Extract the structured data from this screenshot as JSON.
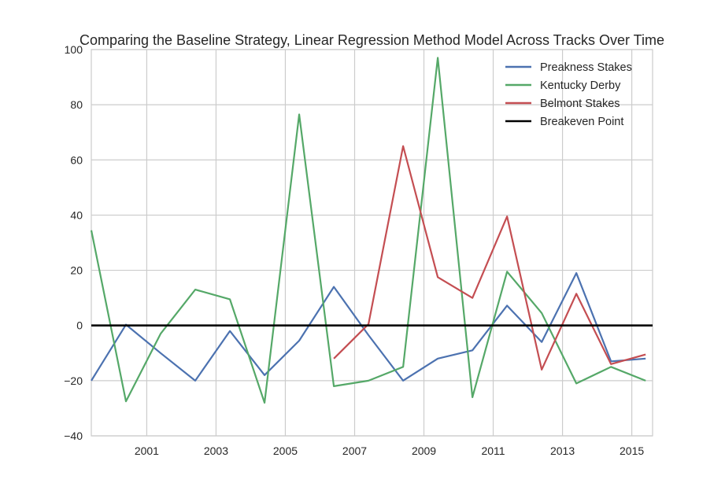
{
  "chart_data": {
    "type": "line",
    "title": "Comparing the Baseline Strategy, Linear Regression Method Model Across Tracks Over Time",
    "xlabel": "",
    "ylabel": "",
    "xlim": [
      1999.4,
      2015.6
    ],
    "ylim": [
      -40,
      100
    ],
    "x_ticks": [
      2001,
      2003,
      2005,
      2007,
      2009,
      2011,
      2013,
      2015
    ],
    "x_tick_labels": [
      "2001",
      "2003",
      "2005",
      "2007",
      "2009",
      "2011",
      "2013",
      "2015"
    ],
    "y_ticks": [
      -40,
      -20,
      0,
      20,
      40,
      60,
      80,
      100
    ],
    "y_tick_labels": [
      "−40",
      "−20",
      "0",
      "20",
      "40",
      "60",
      "80",
      "100"
    ],
    "grid": true,
    "legend_position": "top-right",
    "series": [
      {
        "name": "Preakness Stakes",
        "color": "#4c72b0",
        "x": [
          1999.4,
          2000.4,
          2001.4,
          2002.4,
          2003.4,
          2004.4,
          2005.4,
          2006.4,
          2007.4,
          2008.4,
          2009.4,
          2010.4,
          2011.4,
          2012.4,
          2013.4,
          2014.4,
          2015.4
        ],
        "y": [
          -20,
          0.3,
          -10,
          -20,
          -2,
          -18,
          -5.5,
          14,
          -3.5,
          -20,
          -12,
          -9,
          7.2,
          -6,
          19,
          -13,
          -12
        ]
      },
      {
        "name": "Kentucky Derby",
        "color": "#55a868",
        "x": [
          1999.4,
          2000.4,
          2001.4,
          2002.4,
          2003.4,
          2004.4,
          2005.4,
          2006.4,
          2007.4,
          2008.4,
          2009.4,
          2010.4,
          2011.4,
          2012.4,
          2013.4,
          2014.4,
          2015.4
        ],
        "y": [
          34.5,
          -27.5,
          -3,
          13,
          9.5,
          -28,
          76.5,
          -22,
          -20,
          -15,
          97,
          -26,
          19.5,
          4.5,
          -21,
          -15,
          -20
        ]
      },
      {
        "name": "Belmont Stakes",
        "color": "#c44e52",
        "x": [
          2006.4,
          2007.4,
          2008.4,
          2009.4,
          2010.4,
          2011.4,
          2012.4,
          2013.4,
          2014.4,
          2015.4
        ],
        "y": [
          -12,
          0.5,
          65,
          17.5,
          10,
          39.5,
          -16,
          11.5,
          -14,
          -10.5
        ]
      },
      {
        "name": "Breakeven Point",
        "color": "#000000",
        "x": [
          1999.4,
          2015.6
        ],
        "y": [
          0,
          0
        ]
      }
    ]
  }
}
